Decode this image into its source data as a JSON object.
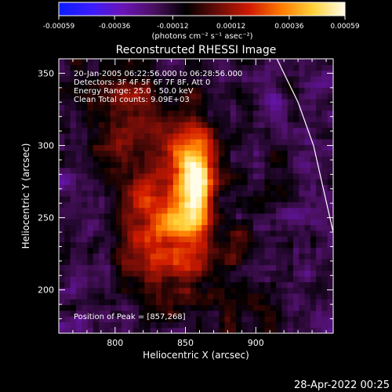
{
  "colors": {
    "background": "#000000",
    "foreground": "#ffffff",
    "colorbar_stops": [
      "#0a1dff",
      "#3a1cff",
      "#6a14b8",
      "#4a1060",
      "#000000",
      "#6a0c08",
      "#d01a00",
      "#ff7a00",
      "#ffd23a",
      "#fffce8"
    ]
  },
  "chart_data": {
    "type": "heatmap",
    "title": "Reconstructed RHESSI Image",
    "xlabel": "Heliocentric X (arcsec)",
    "ylabel": "Heliocentric Y (arcsec)",
    "xlim": [
      760,
      955
    ],
    "ylim": [
      170,
      360
    ],
    "x_ticks": [
      800,
      850,
      900
    ],
    "y_ticks": [
      200,
      250,
      300,
      350
    ],
    "colorbar": {
      "min": -0.00059,
      "max": 0.00059,
      "ticks": [
        "-0.00059",
        "-0.00036",
        "-0.00012",
        "0.00012",
        "0.00036",
        "0.00059"
      ],
      "units_label": "(photons cm⁻² s⁻¹ asec⁻²)"
    },
    "annotations": [
      "20-Jan-2005 06:22:56.000 to 06:28:56.000",
      "Detectors: 3F 4F 5F 6F 7F 8F, Att 0",
      "Energy Range: 25.0 - 50.0 keV",
      "Clean     Total counts: 9.09E+03"
    ],
    "peak": {
      "x": 857,
      "y": 268,
      "label": "Position of Peak = [857,268]"
    },
    "sources": [
      {
        "x": 857,
        "y": 270,
        "sx": 9,
        "sy": 24,
        "amp": 0.00059
      },
      {
        "x": 838,
        "y": 244,
        "sx": 13,
        "sy": 13,
        "amp": 0.00045
      },
      {
        "x": 850,
        "y": 292,
        "sx": 22,
        "sy": 22,
        "amp": 0.00028
      },
      {
        "x": 820,
        "y": 262,
        "sx": 15,
        "sy": 12,
        "amp": 0.00022
      },
      {
        "x": 843,
        "y": 214,
        "sx": 16,
        "sy": 11,
        "amp": 0.00028
      },
      {
        "x": 880,
        "y": 232,
        "sx": 12,
        "sy": 14,
        "amp": 0.00018
      },
      {
        "x": 812,
        "y": 225,
        "sx": 14,
        "sy": 14,
        "amp": 0.0002
      },
      {
        "x": 810,
        "y": 330,
        "sx": 22,
        "sy": 18,
        "amp": 0.00026
      },
      {
        "x": 795,
        "y": 292,
        "sx": 14,
        "sy": 12,
        "amp": 0.00012
      },
      {
        "x": 890,
        "y": 185,
        "sx": 18,
        "sy": 12,
        "amp": 0.00018
      },
      {
        "x": 835,
        "y": 185,
        "sx": 16,
        "sy": 10,
        "amp": 0.00016
      },
      {
        "x": 915,
        "y": 268,
        "sx": 10,
        "sy": 10,
        "amp": 8e-05
      }
    ],
    "limb_curve": [
      [
        915,
        360
      ],
      [
        930,
        330
      ],
      [
        941,
        300
      ],
      [
        948,
        270
      ],
      [
        955,
        240
      ]
    ]
  },
  "footer": {
    "timestamp": "28-Apr-2022 00:25"
  }
}
